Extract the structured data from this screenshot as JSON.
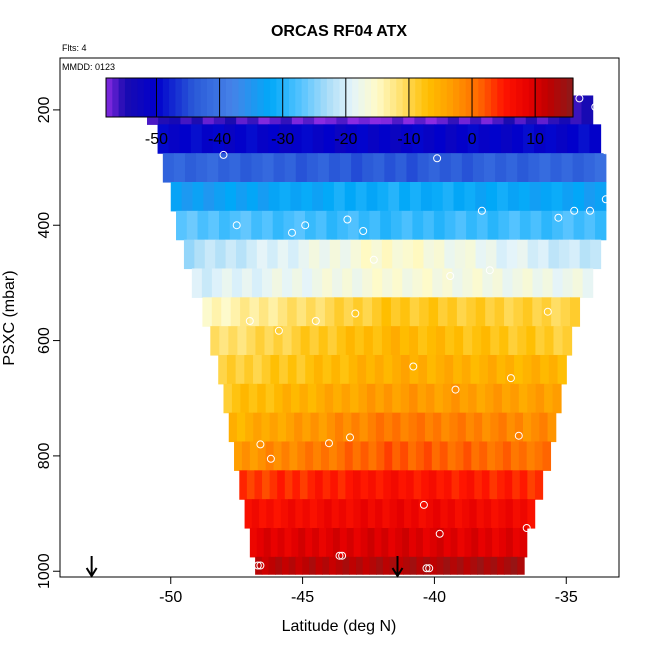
{
  "chart_data": {
    "type": "heatmap",
    "title": "ORCAS RF04 ATX",
    "flights_label": "Flts: 4",
    "date_label": "MMDD: 0123",
    "xlabel": "Latitude (deg N)",
    "ylabel": "PSXC (mbar)",
    "xlim": [
      -54.2,
      -33.0
    ],
    "ylim": [
      1010,
      110
    ],
    "x_ticks": [
      -50,
      -45,
      -40,
      -35
    ],
    "y_ticks": [
      200,
      400,
      600,
      800,
      1000
    ],
    "colorbar": {
      "range": [
        -58,
        16
      ],
      "ticks": [
        -50,
        -40,
        -30,
        -20,
        -10,
        0,
        10
      ],
      "stops": [
        {
          "v": -58,
          "c": "#8a2be2"
        },
        {
          "v": -55,
          "c": "#1a0bb0"
        },
        {
          "v": -50,
          "c": "#0000cc"
        },
        {
          "v": -44,
          "c": "#2a5ad8"
        },
        {
          "v": -38,
          "c": "#4682e8"
        },
        {
          "v": -32,
          "c": "#00a8f8"
        },
        {
          "v": -27,
          "c": "#58c4ff"
        },
        {
          "v": -23,
          "c": "#a8dcf8"
        },
        {
          "v": -19,
          "c": "#e4f4fa"
        },
        {
          "v": -15,
          "c": "#fffbc8"
        },
        {
          "v": -11,
          "c": "#ffde66"
        },
        {
          "v": -7,
          "c": "#ffbe00"
        },
        {
          "v": -3,
          "c": "#ff9a00"
        },
        {
          "v": 1,
          "c": "#ff6a00"
        },
        {
          "v": 5,
          "c": "#ff1500"
        },
        {
          "v": 9,
          "c": "#e60000"
        },
        {
          "v": 12,
          "c": "#c00000"
        },
        {
          "v": 16,
          "c": "#8b1a1a"
        }
      ]
    },
    "rows": [
      {
        "p": 180,
        "x0": -50.9,
        "x1": -34.0,
        "t0": -55,
        "t1": -58,
        "t2": -55
      },
      {
        "p": 230,
        "x0": -50.5,
        "x1": -33.7,
        "t0": -50,
        "t1": -51,
        "t2": -50
      },
      {
        "p": 280,
        "x0": -50.3,
        "x1": -33.5,
        "t0": -42,
        "t1": -44,
        "t2": -42
      },
      {
        "p": 330,
        "x0": -50.0,
        "x1": -33.5,
        "t0": -34,
        "t1": -31,
        "t2": -33
      },
      {
        "p": 380,
        "x0": -49.8,
        "x1": -33.5,
        "t0": -27,
        "t1": -29,
        "t2": -28
      },
      {
        "p": 430,
        "x0": -49.5,
        "x1": -33.7,
        "t0": -23,
        "t1": -15,
        "t2": -22
      },
      {
        "p": 480,
        "x0": -49.2,
        "x1": -34.0,
        "t0": -20,
        "t1": -16,
        "t2": -18
      },
      {
        "p": 530,
        "x0": -48.8,
        "x1": -34.5,
        "t0": -15,
        "t1": -8,
        "t2": -10
      },
      {
        "p": 580,
        "x0": -48.5,
        "x1": -34.8,
        "t0": -12,
        "t1": -6,
        "t2": -9
      },
      {
        "p": 630,
        "x0": -48.2,
        "x1": -35.0,
        "t0": -10,
        "t1": -5,
        "t2": -6
      },
      {
        "p": 680,
        "x0": -48.0,
        "x1": -35.2,
        "t0": -8,
        "t1": -3,
        "t2": -4
      },
      {
        "p": 730,
        "x0": -47.8,
        "x1": -35.4,
        "t0": -6,
        "t1": 0,
        "t2": -2
      },
      {
        "p": 780,
        "x0": -47.6,
        "x1": -35.6,
        "t0": -3,
        "t1": 2,
        "t2": 0
      },
      {
        "p": 830,
        "x0": -47.4,
        "x1": -35.9,
        "t0": 3,
        "t1": 6,
        "t2": 4
      },
      {
        "p": 880,
        "x0": -47.2,
        "x1": -36.2,
        "t0": 6,
        "t1": 8,
        "t2": 7
      },
      {
        "p": 930,
        "x0": -47.0,
        "x1": -36.5,
        "t0": 9,
        "t1": 10,
        "t2": 9
      },
      {
        "p": 980,
        "x0": -46.8,
        "x1": -36.6,
        "t0": 12,
        "t1": 13,
        "t2": 14
      }
    ],
    "points": [
      [
        -50.8,
        180
      ],
      [
        -50.4,
        180
      ],
      [
        -50.0,
        180
      ],
      [
        -49.6,
        180
      ],
      [
        -49.2,
        180
      ],
      [
        -48.7,
        180
      ],
      [
        -48.5,
        188
      ],
      [
        -39.0,
        188
      ],
      [
        -38.5,
        180
      ],
      [
        -37.8,
        180
      ],
      [
        -37.0,
        180
      ],
      [
        -36.4,
        180
      ],
      [
        -35.7,
        180
      ],
      [
        -35.1,
        180
      ],
      [
        -34.5,
        180
      ],
      [
        -33.9,
        195
      ],
      [
        -48.0,
        278
      ],
      [
        -39.9,
        284
      ],
      [
        -33.5,
        270
      ],
      [
        -33.5,
        355
      ],
      [
        -47.5,
        400
      ],
      [
        -45.4,
        413
      ],
      [
        -44.9,
        400
      ],
      [
        -43.3,
        390
      ],
      [
        -42.7,
        410
      ],
      [
        -42.3,
        460
      ],
      [
        -38.2,
        375
      ],
      [
        -35.3,
        387
      ],
      [
        -34.7,
        375
      ],
      [
        -34.1,
        375
      ],
      [
        -39.4,
        488
      ],
      [
        -37.9,
        478
      ],
      [
        -47.0,
        566
      ],
      [
        -45.9,
        583
      ],
      [
        -44.5,
        566
      ],
      [
        -43.0,
        553
      ],
      [
        -35.7,
        550
      ],
      [
        -40.8,
        645
      ],
      [
        -39.2,
        685
      ],
      [
        -37.1,
        665
      ],
      [
        -46.6,
        780
      ],
      [
        -46.2,
        805
      ],
      [
        -44.0,
        778
      ],
      [
        -43.2,
        768
      ],
      [
        -36.8,
        765
      ],
      [
        -40.4,
        885
      ],
      [
        -39.8,
        935
      ],
      [
        -36.5,
        925
      ],
      [
        -46.7,
        990
      ],
      [
        -46.6,
        990
      ],
      [
        -43.6,
        973
      ],
      [
        -43.5,
        973
      ],
      [
        -40.3,
        995
      ],
      [
        -40.2,
        995
      ],
      [
        -36.4,
        997
      ],
      [
        -36.3,
        997
      ]
    ],
    "arrows": [
      -53.0,
      -41.4
    ]
  }
}
